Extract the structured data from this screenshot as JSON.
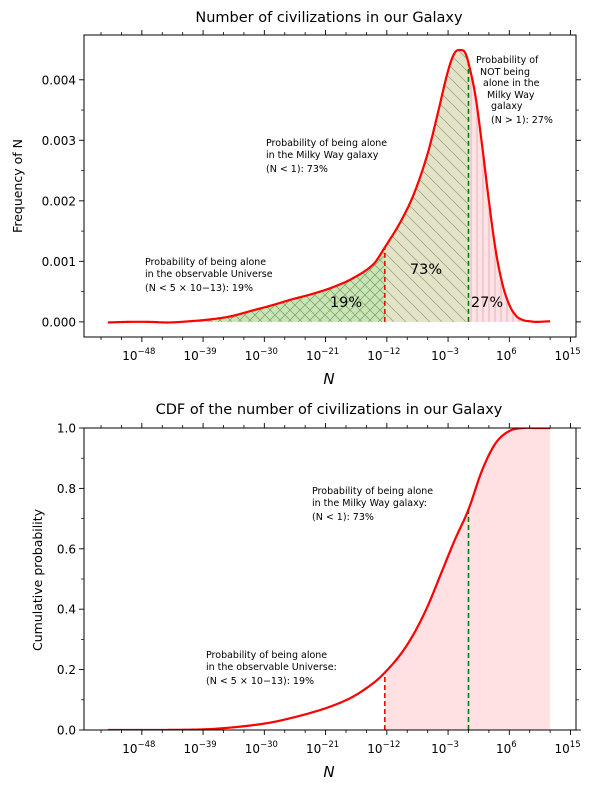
{
  "chart_data": [
    {
      "type": "area",
      "title": "Number of civilizations in our Galaxy",
      "xlabel": "N",
      "ylabel": "Frequency of N",
      "x_scale": "log",
      "x_ticks": [
        {
          "base": "10",
          "exp": "−48",
          "log10": -48
        },
        {
          "base": "10",
          "exp": "−39",
          "log10": -39
        },
        {
          "base": "10",
          "exp": "−30",
          "log10": -30
        },
        {
          "base": "10",
          "exp": "−21",
          "log10": -21
        },
        {
          "base": "10",
          "exp": "−12",
          "log10": -12
        },
        {
          "base": "10",
          "exp": "−3",
          "log10": -3
        },
        {
          "base": "10",
          "exp": "6",
          "log10": 6
        },
        {
          "base": "10",
          "exp": "15",
          "log10": 15
        }
      ],
      "y_ticks": [
        "0.000",
        "0.001",
        "0.002",
        "0.003",
        "0.004"
      ],
      "ylim": [
        -0.00025,
        0.00474
      ],
      "xlim_log10": [
        -56.5,
        15.8
      ],
      "series": [
        {
          "color": "#ff0000",
          "x_log10": [
            -53,
            -50,
            -47,
            -44,
            -41,
            -38,
            -35,
            -32,
            -29,
            -26,
            -23,
            -20,
            -17,
            -14,
            -12.3,
            -10,
            -8,
            -6,
            -4.5,
            -3,
            -2,
            -1,
            -0.5,
            0,
            1,
            2,
            3,
            4,
            5,
            6,
            7,
            8,
            9,
            10,
            12
          ],
          "y": [
            -1e-05,
            0.0,
            0.0,
            -1e-05,
            1e-05,
            4e-05,
            9e-05,
            0.00018,
            0.00027,
            0.00037,
            0.00046,
            0.00057,
            0.00072,
            0.00095,
            0.00123,
            0.00165,
            0.00212,
            0.00278,
            0.00345,
            0.00415,
            0.00445,
            0.00449,
            0.00445,
            0.00428,
            0.00375,
            0.00292,
            0.002,
            0.00118,
            0.00062,
            0.00028,
            0.0001,
            3e-05,
            1e-05,
            0.0,
            1e-05
          ]
        }
      ],
      "regions": [
        {
          "from_log10": -40,
          "to_log10": -12.3,
          "label": "19%",
          "fill": "#c8e6b4",
          "hatch": "x"
        },
        {
          "from_log10": -12.3,
          "to_log10": 0,
          "label": "73%",
          "fill": "#e3e3c8",
          "hatch": "\\"
        },
        {
          "from_log10": 0,
          "to_log10": 9.5,
          "label": "27%",
          "fill": "#fde2e4",
          "hatch": "|"
        }
      ],
      "vlines": [
        {
          "x_log10": -12.3,
          "color": "#ff0000"
        },
        {
          "x_log10": 0,
          "color": "#008000"
        }
      ],
      "annotations": [
        [
          "Probability of being alone",
          "in the observable Universe",
          "(N < 5 × 10−13): 19%"
        ],
        [
          "Probability of being alone",
          "in the Milky Way galaxy",
          "(N < 1): 73%"
        ],
        [
          "Probability of",
          "NOT being",
          "alone in the",
          "Milky Way",
          "galaxy",
          "(N > 1): 27%"
        ]
      ]
    },
    {
      "type": "line",
      "title": "CDF of the number of civilizations in our Galaxy",
      "xlabel": "N",
      "ylabel": "Cumulative probability",
      "x_scale": "log",
      "x_ticks": [
        {
          "base": "10",
          "exp": "−48",
          "log10": -48
        },
        {
          "base": "10",
          "exp": "−39",
          "log10": -39
        },
        {
          "base": "10",
          "exp": "−30",
          "log10": -30
        },
        {
          "base": "10",
          "exp": "−21",
          "log10": -21
        },
        {
          "base": "10",
          "exp": "−12",
          "log10": -12
        },
        {
          "base": "10",
          "exp": "−3",
          "log10": -3
        },
        {
          "base": "10",
          "exp": "6",
          "log10": 6
        },
        {
          "base": "10",
          "exp": "15",
          "log10": 15
        }
      ],
      "y_ticks": [
        "0.0",
        "0.2",
        "0.4",
        "0.6",
        "0.8",
        "1.0"
      ],
      "ylim": [
        0,
        1
      ],
      "xlim_log10": [
        -56.5,
        15.8
      ],
      "series": [
        {
          "color": "#ff0000",
          "x_log10": [
            -53,
            -47,
            -41,
            -38,
            -35,
            -32,
            -29,
            -26,
            -23,
            -20,
            -17,
            -14,
            -12.3,
            -10,
            -8,
            -6,
            -4,
            -2,
            0,
            2,
            4,
            6,
            8,
            10,
            12
          ],
          "y": [
            0.0,
            0.0,
            0.001,
            0.003,
            0.008,
            0.015,
            0.025,
            0.04,
            0.058,
            0.08,
            0.11,
            0.155,
            0.19,
            0.25,
            0.32,
            0.41,
            0.52,
            0.63,
            0.73,
            0.86,
            0.95,
            0.99,
            1.0,
            1.0,
            1.0
          ]
        }
      ],
      "shade": {
        "from_log10": -12.3,
        "to_log10": 12,
        "fill": "#ffe0e3"
      },
      "vlines": [
        {
          "x_log10": -12.3,
          "y": 0.19,
          "color": "#ff0000"
        },
        {
          "x_log10": 0,
          "y": 0.73,
          "color": "#008000"
        }
      ],
      "annotations": [
        [
          "Probability of being alone",
          "in the Milky Way galaxy:",
          "(N < 1): 73%"
        ],
        [
          "Probability of being alone",
          "in the observable Universe:",
          "(N < 5 × 10−13): 19%"
        ]
      ]
    }
  ]
}
